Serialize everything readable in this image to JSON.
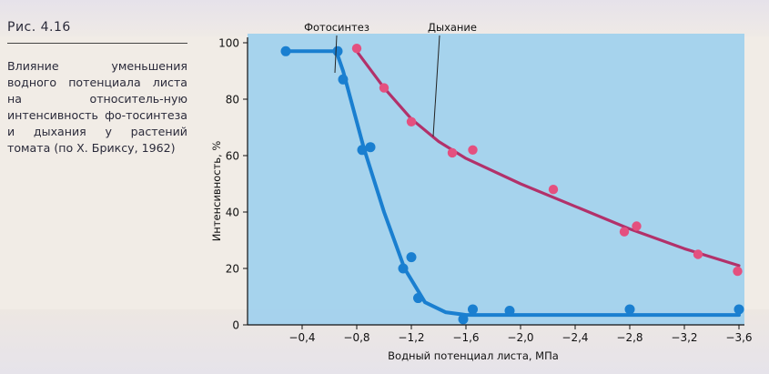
{
  "caption": {
    "figure_label": "Рис. 4.16",
    "text": "Влияние уменьшения водного потенциала листа на относитель-ную интенсивность фо-тосинтеза и дыхания у растений томата (по Х. Бриксу, 1962)"
  },
  "colors": {
    "plot_background": "#9fd0ee",
    "photosynthesis": "#1a7fd0",
    "respiration": "#b2316a",
    "axis": "#111111"
  },
  "chart_data": {
    "type": "line",
    "title": "",
    "xlabel": "Водный потенциал листа,   МПа",
    "ylabel": "Интенсивность, %",
    "xlim": [
      0,
      -3.6
    ],
    "ylim": [
      0,
      100
    ],
    "x_ticks": [
      -0.4,
      -0.8,
      -1.2,
      -1.6,
      -2.0,
      -2.4,
      -2.8,
      -3.2,
      -3.6
    ],
    "x_tick_labels": [
      "−0,4",
      "−0,8",
      "−1,2",
      "−1,6",
      "−2,0",
      "−2,4",
      "−2,8",
      "−3,2",
      "−3,6"
    ],
    "y_ticks": [
      0,
      20,
      40,
      60,
      80,
      100
    ],
    "y_tick_labels": [
      "0",
      "20",
      "40",
      "60",
      "80",
      "100"
    ],
    "grid": false,
    "series": [
      {
        "name": "Фотосинтез",
        "color_key": "photosynthesis",
        "points": [
          {
            "x": -0.28,
            "y": 97
          },
          {
            "x": -0.66,
            "y": 97
          },
          {
            "x": -0.7,
            "y": 87
          },
          {
            "x": -0.84,
            "y": 62
          },
          {
            "x": -0.9,
            "y": 63
          },
          {
            "x": -1.14,
            "y": 20
          },
          {
            "x": -1.2,
            "y": 24
          },
          {
            "x": -1.25,
            "y": 9.5
          },
          {
            "x": -1.58,
            "y": 2
          },
          {
            "x": -1.65,
            "y": 5.5
          },
          {
            "x": -1.92,
            "y": 5
          },
          {
            "x": -2.8,
            "y": 5.5
          },
          {
            "x": -3.6,
            "y": 5.5
          }
        ],
        "curve": [
          {
            "x": -0.28,
            "y": 97
          },
          {
            "x": -0.65,
            "y": 97
          },
          {
            "x": -0.7,
            "y": 90
          },
          {
            "x": -0.85,
            "y": 63
          },
          {
            "x": -1.0,
            "y": 40
          },
          {
            "x": -1.15,
            "y": 20
          },
          {
            "x": -1.3,
            "y": 8
          },
          {
            "x": -1.45,
            "y": 4.5
          },
          {
            "x": -1.6,
            "y": 3.5
          },
          {
            "x": -2.0,
            "y": 3.5
          },
          {
            "x": -2.8,
            "y": 3.5
          },
          {
            "x": -3.6,
            "y": 3.5
          }
        ]
      },
      {
        "name": "Дыхание",
        "color_key": "respiration",
        "points": [
          {
            "x": -0.8,
            "y": 98
          },
          {
            "x": -1.0,
            "y": 84
          },
          {
            "x": -1.2,
            "y": 72
          },
          {
            "x": -1.5,
            "y": 61
          },
          {
            "x": -1.65,
            "y": 62
          },
          {
            "x": -2.24,
            "y": 48
          },
          {
            "x": -2.76,
            "y": 33
          },
          {
            "x": -2.85,
            "y": 35
          },
          {
            "x": -3.3,
            "y": 25
          },
          {
            "x": -3.59,
            "y": 19
          }
        ],
        "curve": [
          {
            "x": -0.8,
            "y": 97
          },
          {
            "x": -1.0,
            "y": 84
          },
          {
            "x": -1.2,
            "y": 73
          },
          {
            "x": -1.4,
            "y": 65
          },
          {
            "x": -1.6,
            "y": 59
          },
          {
            "x": -2.0,
            "y": 50
          },
          {
            "x": -2.4,
            "y": 42
          },
          {
            "x": -2.8,
            "y": 34
          },
          {
            "x": -3.2,
            "y": 27
          },
          {
            "x": -3.6,
            "y": 21
          }
        ]
      }
    ]
  }
}
